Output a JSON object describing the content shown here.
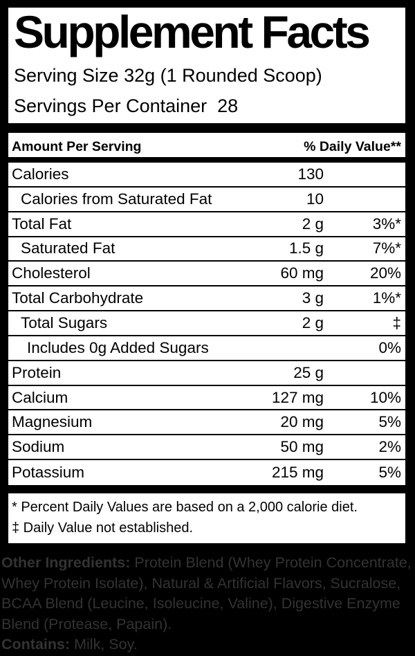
{
  "panel": {
    "title": "Supplement Facts",
    "serving_size": "Serving Size 32g (1 Rounded Scoop)",
    "servings_per_container": "Servings Per Container  28",
    "header": {
      "left": "Amount Per Serving",
      "right": "% Daily Value**"
    },
    "rows": [
      {
        "name": "Calories",
        "amount": "130",
        "dv": "",
        "indent": 0
      },
      {
        "name": "Calories from Saturated Fat",
        "amount": "10",
        "dv": "",
        "indent": 1
      },
      {
        "name": "Total Fat",
        "amount": "2 g",
        "dv": "3%*",
        "indent": 0
      },
      {
        "name": "Saturated Fat",
        "amount": "1.5 g",
        "dv": "7%*",
        "indent": 1
      },
      {
        "name": "Cholesterol",
        "amount": "60 mg",
        "dv": "20%",
        "indent": 0
      },
      {
        "name": "Total Carbohydrate",
        "amount": "3 g",
        "dv": "1%*",
        "indent": 0
      },
      {
        "name": "Total Sugars",
        "amount": "2 g",
        "dv": "‡",
        "indent": 1
      },
      {
        "name": "Includes 0g Added Sugars",
        "amount": "",
        "dv": "0%",
        "indent": 2
      },
      {
        "name": "Protein",
        "amount": "25 g",
        "dv": "",
        "indent": 0
      },
      {
        "name": "Calcium",
        "amount": "127 mg",
        "dv": "10%",
        "indent": 0
      },
      {
        "name": "Magnesium",
        "amount": "20 mg",
        "dv": "5%",
        "indent": 0
      },
      {
        "name": "Sodium",
        "amount": "50 mg",
        "dv": "2%",
        "indent": 0
      },
      {
        "name": "Potassium",
        "amount": "215 mg",
        "dv": "5%",
        "indent": 0
      }
    ],
    "footnotes": {
      "percent_dv": "* Percent Daily Values are based on a 2,000 calorie diet.",
      "not_established": "‡ Daily Value not established."
    }
  },
  "ingredients": {
    "label": "Other Ingredients:",
    "line1_rest": " Protein Blend (Whey Protein Concentrate,",
    "line2": "Whey Protein Isolate), Natural & Artificial Flavors, Sucralose,",
    "line3": "BCAA Blend (Leucine, Isoleucine, Valine), Digestive Enzyme",
    "line4": "Blend (Protease, Papain).",
    "contains_label": "Contains:",
    "contains_rest": " Milk, Soy."
  },
  "colors": {
    "page_background": "#000000",
    "panel_background": "#ffffff",
    "ink": "#000000",
    "ingredients_ink": "#333333"
  }
}
